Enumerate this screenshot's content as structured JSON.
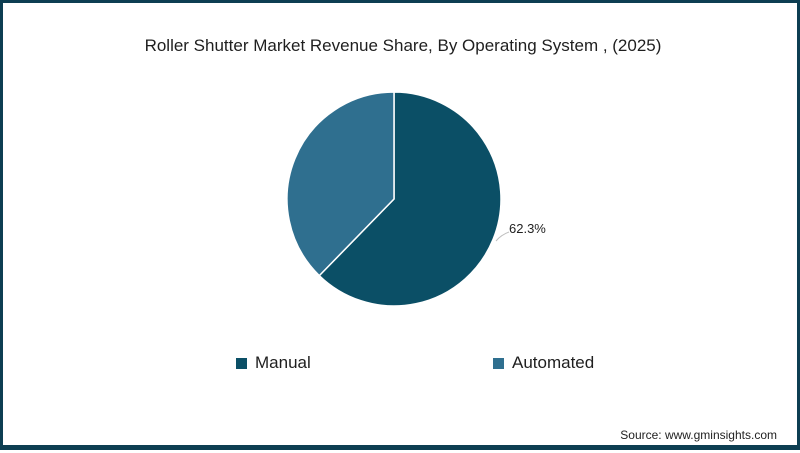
{
  "title": "Roller Shutter Market Revenue Share, By Operating System , (2025)",
  "source": "Source: www.gminsights.com",
  "colors": {
    "manual": "#0b4f66",
    "automated": "#2f6f8f",
    "border": "#0d3e52"
  },
  "legend": [
    {
      "label": "Manual",
      "color": "#0b4f66"
    },
    {
      "label": "Automated",
      "color": "#2f6f8f"
    }
  ],
  "labels": {
    "manual_pct": "62.3%"
  },
  "chart_data": {
    "type": "pie",
    "title": "Roller Shutter Market Revenue Share, By Operating System , (2025)",
    "categories": [
      "Manual",
      "Automated"
    ],
    "values": [
      62.3,
      37.7
    ],
    "data_labels": [
      "62.3%",
      ""
    ],
    "legend_position": "bottom",
    "start_angle_deg": 0,
    "direction": "clockwise"
  }
}
